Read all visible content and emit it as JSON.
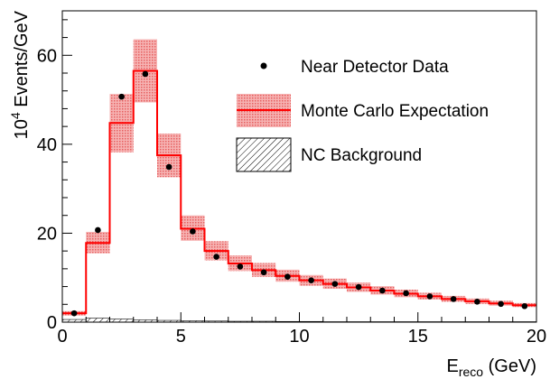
{
  "chart_data": {
    "type": "histogram",
    "title": "",
    "xlabel": {
      "main": "E",
      "sub": "reco",
      "rest": " (GeV)"
    },
    "ylabel": {
      "main": "10",
      "sup": "4",
      "rest": " Events/GeV"
    },
    "xlim": [
      0,
      20
    ],
    "ylim": [
      0,
      70
    ],
    "x_ticks": [
      0,
      5,
      10,
      15,
      20
    ],
    "x_tick_labels": [
      "0",
      "5",
      "10",
      "15",
      "20"
    ],
    "y_ticks": [
      0,
      20,
      40,
      60
    ],
    "y_tick_labels": [
      "0",
      "20",
      "40",
      "60"
    ],
    "grid": false,
    "legend_position": "top-right",
    "legend": {
      "data": "Near Detector Data",
      "mc": "Monte Carlo Expectation",
      "nc": "NC Background"
    },
    "colors": {
      "mc": "#ff0000",
      "band": "#f08080",
      "data": "#000000",
      "nc": "#000000"
    },
    "bin_edges": [
      0,
      1,
      2,
      3,
      4,
      5,
      6,
      7,
      8,
      9,
      10,
      11,
      12,
      13,
      14,
      15,
      16,
      17,
      18,
      19,
      20
    ],
    "series": [
      {
        "name": "Monte Carlo Expectation",
        "type": "step",
        "values": [
          2.0,
          17.8,
          44.8,
          56.5,
          37.5,
          21.0,
          16.0,
          13.2,
          11.7,
          10.4,
          9.4,
          8.6,
          7.8,
          7.1,
          6.4,
          5.8,
          5.2,
          4.7,
          4.2,
          3.8
        ],
        "err_lo": [
          1.5,
          15.5,
          38.2,
          49.4,
          32.6,
          18.3,
          13.9,
          11.5,
          10.2,
          9.1,
          8.2,
          7.5,
          6.8,
          6.2,
          5.6,
          5.1,
          4.6,
          4.1,
          3.7,
          3.4
        ],
        "err_hi": [
          2.5,
          20.3,
          51.3,
          63.6,
          42.4,
          24.0,
          18.2,
          15.0,
          13.3,
          11.8,
          10.6,
          9.8,
          8.9,
          8.1,
          7.3,
          6.6,
          5.9,
          5.3,
          4.8,
          4.3
        ]
      },
      {
        "name": "Near Detector Data",
        "type": "points",
        "x": [
          0.5,
          1.5,
          2.5,
          3.5,
          4.5,
          5.5,
          6.5,
          7.5,
          8.5,
          9.5,
          10.5,
          11.5,
          12.5,
          13.5,
          14.5,
          15.5,
          16.5,
          17.5,
          18.5,
          19.5
        ],
        "values": [
          2.0,
          20.7,
          50.7,
          55.8,
          34.9,
          20.4,
          14.7,
          12.5,
          11.2,
          10.2,
          9.4,
          8.6,
          7.9,
          7.1,
          6.5,
          5.8,
          5.2,
          4.6,
          4.1,
          3.6
        ]
      },
      {
        "name": "NC Background",
        "type": "hatched",
        "values": [
          0.6,
          0.9,
          0.7,
          0.5,
          0.4,
          0.3,
          0.25,
          0.2,
          0.2,
          0.15,
          0.15,
          0.1,
          0.1,
          0.1,
          0.1,
          0.1,
          0.1,
          0.1,
          0.1,
          0.1
        ]
      }
    ]
  }
}
